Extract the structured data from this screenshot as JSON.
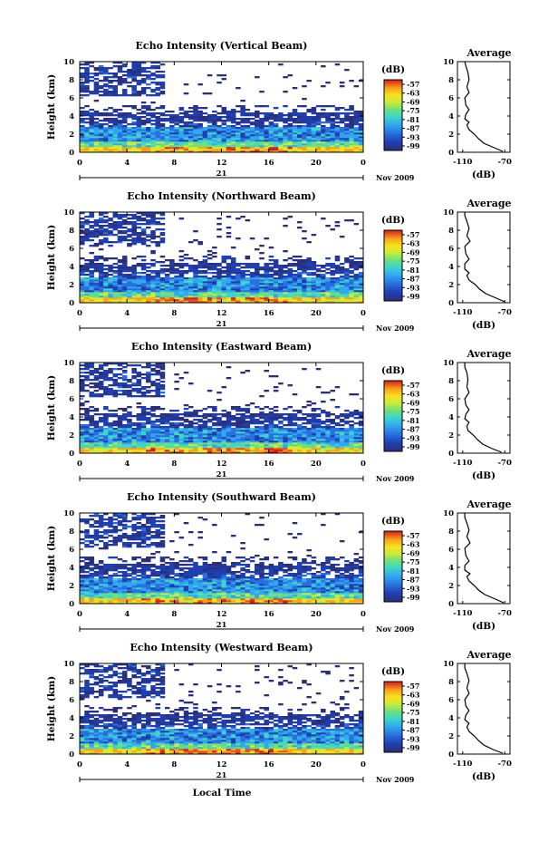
{
  "figure": {
    "xlabel_bottom": "Local Time",
    "colors": {
      "colormap": [
        "#2b2f7a",
        "#1f3fb0",
        "#2a6fe0",
        "#2fa8f0",
        "#3fd6c8",
        "#6fe07a",
        "#c8ec3a",
        "#f7e21d",
        "#f8a31a",
        "#ee4a1a",
        "#d81b1b"
      ]
    }
  },
  "chart_data": [
    {
      "type": "heatmap",
      "title": "Echo Intensity (Vertical Beam)",
      "ylabel": "Height (km)",
      "x_ticks": [
        "0",
        "4",
        "8",
        "12",
        "16",
        "20",
        "0"
      ],
      "y_ticks": [
        "0",
        "2",
        "4",
        "6",
        "8",
        "10"
      ],
      "xlim": [
        0,
        24
      ],
      "ylim": [
        0,
        10
      ],
      "day_label": "21",
      "month_label": "Nov 2009",
      "colorbar": {
        "unit": "(dB)",
        "ticks": [
          "-57",
          "-63",
          "-69",
          "-75",
          "-81",
          "-87",
          "-93",
          "-99"
        ]
      },
      "average": {
        "title": "Average",
        "xlabel": "(dB)",
        "x_ticks": [
          "-110",
          "-70"
        ],
        "xlim": [
          -115,
          -65
        ],
        "y_ticks": [
          "0",
          "2",
          "4",
          "6",
          "8",
          "10"
        ],
        "profile": [
          [
            -72,
            0.1
          ],
          [
            -80,
            0.5
          ],
          [
            -90,
            1.0
          ],
          [
            -95,
            1.5
          ],
          [
            -99,
            2.0
          ],
          [
            -104,
            2.5
          ],
          [
            -106,
            3.0
          ],
          [
            -104,
            3.3
          ],
          [
            -108,
            3.7
          ],
          [
            -107,
            4.2
          ],
          [
            -104,
            4.7
          ],
          [
            -107,
            5.2
          ],
          [
            -108,
            6.0
          ],
          [
            -104,
            6.6
          ],
          [
            -106,
            7.2
          ],
          [
            -104,
            8.0
          ],
          [
            -105,
            8.8
          ],
          [
            -107,
            9.5
          ],
          [
            -108,
            10.0
          ]
        ]
      }
    },
    {
      "type": "heatmap",
      "title": "Echo Intensity (Northward Beam)",
      "ylabel": "Height (km)",
      "x_ticks": [
        "0",
        "4",
        "8",
        "12",
        "16",
        "20",
        "0"
      ],
      "y_ticks": [
        "0",
        "2",
        "4",
        "6",
        "8",
        "10"
      ],
      "xlim": [
        0,
        24
      ],
      "ylim": [
        0,
        10
      ],
      "day_label": "21",
      "month_label": "Nov 2009",
      "colorbar": {
        "unit": "(dB)",
        "ticks": [
          "-57",
          "-63",
          "-69",
          "-75",
          "-81",
          "-87",
          "-93",
          "-99"
        ]
      },
      "average": {
        "title": "Average",
        "xlabel": "(dB)",
        "x_ticks": [
          "-110",
          "-70"
        ],
        "xlim": [
          -115,
          -65
        ],
        "y_ticks": [
          "0",
          "2",
          "4",
          "6",
          "8",
          "10"
        ],
        "profile": [
          [
            -70,
            0.1
          ],
          [
            -78,
            0.5
          ],
          [
            -88,
            1.0
          ],
          [
            -94,
            1.5
          ],
          [
            -98,
            2.0
          ],
          [
            -104,
            2.5
          ],
          [
            -106,
            3.0
          ],
          [
            -104,
            3.3
          ],
          [
            -108,
            3.7
          ],
          [
            -108,
            4.3
          ],
          [
            -104,
            4.8
          ],
          [
            -107,
            5.4
          ],
          [
            -108,
            6.2
          ],
          [
            -103,
            6.8
          ],
          [
            -106,
            7.4
          ],
          [
            -104,
            8.2
          ],
          [
            -106,
            9.0
          ],
          [
            -108,
            9.6
          ],
          [
            -108,
            10.0
          ]
        ]
      }
    },
    {
      "type": "heatmap",
      "title": "Echo Intensity (Eastward Beam)",
      "ylabel": "Height (km)",
      "x_ticks": [
        "0",
        "4",
        "8",
        "12",
        "16",
        "20",
        "0"
      ],
      "y_ticks": [
        "0",
        "2",
        "4",
        "6",
        "8",
        "10"
      ],
      "xlim": [
        0,
        24
      ],
      "ylim": [
        0,
        10
      ],
      "day_label": "21",
      "month_label": "Nov 2009",
      "colorbar": {
        "unit": "(dB)",
        "ticks": [
          "-57",
          "-63",
          "-69",
          "-75",
          "-81",
          "-87",
          "-93",
          "-99"
        ]
      },
      "average": {
        "title": "Average",
        "xlabel": "(dB)",
        "x_ticks": [
          "-110",
          "-70"
        ],
        "xlim": [
          -115,
          -65
        ],
        "y_ticks": [
          "0",
          "2",
          "4",
          "6",
          "8",
          "10"
        ],
        "profile": [
          [
            -73,
            0.1
          ],
          [
            -82,
            0.5
          ],
          [
            -91,
            1.0
          ],
          [
            -96,
            1.5
          ],
          [
            -100,
            2.0
          ],
          [
            -105,
            2.5
          ],
          [
            -106,
            3.0
          ],
          [
            -104,
            3.4
          ],
          [
            -108,
            3.8
          ],
          [
            -107,
            4.3
          ],
          [
            -104,
            4.8
          ],
          [
            -107,
            5.3
          ],
          [
            -108,
            6.0
          ],
          [
            -104,
            6.7
          ],
          [
            -106,
            7.3
          ],
          [
            -105,
            8.1
          ],
          [
            -106,
            8.9
          ],
          [
            -108,
            9.5
          ],
          [
            -108,
            10.0
          ]
        ]
      }
    },
    {
      "type": "heatmap",
      "title": "Echo Intensity (Southward Beam)",
      "ylabel": "Height (km)",
      "x_ticks": [
        "0",
        "4",
        "8",
        "12",
        "16",
        "20",
        "0"
      ],
      "y_ticks": [
        "0",
        "2",
        "4",
        "6",
        "8",
        "10"
      ],
      "xlim": [
        0,
        24
      ],
      "ylim": [
        0,
        10
      ],
      "day_label": "21",
      "month_label": "Nov 2009",
      "colorbar": {
        "unit": "(dB)",
        "ticks": [
          "-57",
          "-63",
          "-69",
          "-75",
          "-81",
          "-87",
          "-93",
          "-99"
        ]
      },
      "average": {
        "title": "Average",
        "xlabel": "(dB)",
        "x_ticks": [
          "-110",
          "-70"
        ],
        "xlim": [
          -115,
          -65
        ],
        "y_ticks": [
          "0",
          "2",
          "4",
          "6",
          "8",
          "10"
        ],
        "profile": [
          [
            -71,
            0.1
          ],
          [
            -79,
            0.5
          ],
          [
            -89,
            1.0
          ],
          [
            -95,
            1.5
          ],
          [
            -99,
            2.0
          ],
          [
            -104,
            2.5
          ],
          [
            -106,
            3.0
          ],
          [
            -103,
            3.3
          ],
          [
            -108,
            3.7
          ],
          [
            -108,
            4.2
          ],
          [
            -104,
            4.7
          ],
          [
            -107,
            5.3
          ],
          [
            -108,
            6.1
          ],
          [
            -103,
            6.7
          ],
          [
            -106,
            7.4
          ],
          [
            -104,
            8.1
          ],
          [
            -106,
            8.9
          ],
          [
            -108,
            9.5
          ],
          [
            -108,
            10.0
          ]
        ]
      }
    },
    {
      "type": "heatmap",
      "title": "Echo Intensity (Westward Beam)",
      "ylabel": "Height (km)",
      "x_ticks": [
        "0",
        "4",
        "8",
        "12",
        "16",
        "20",
        "0"
      ],
      "y_ticks": [
        "0",
        "2",
        "4",
        "6",
        "8",
        "10"
      ],
      "xlim": [
        0,
        24
      ],
      "ylim": [
        0,
        10
      ],
      "day_label": "21",
      "month_label": "Nov 2009",
      "colorbar": {
        "unit": "(dB)",
        "ticks": [
          "-57",
          "-63",
          "-69",
          "-75",
          "-81",
          "-87",
          "-93",
          "-99"
        ]
      },
      "average": {
        "title": "Average",
        "xlabel": "(dB)",
        "x_ticks": [
          "-110",
          "-70"
        ],
        "xlim": [
          -115,
          -65
        ],
        "y_ticks": [
          "0",
          "2",
          "4",
          "6",
          "8",
          "10"
        ],
        "profile": [
          [
            -72,
            0.1
          ],
          [
            -81,
            0.5
          ],
          [
            -90,
            1.0
          ],
          [
            -95,
            1.5
          ],
          [
            -99,
            2.0
          ],
          [
            -104,
            2.5
          ],
          [
            -106,
            3.0
          ],
          [
            -104,
            3.4
          ],
          [
            -108,
            3.8
          ],
          [
            -107,
            4.3
          ],
          [
            -104,
            4.8
          ],
          [
            -107,
            5.3
          ],
          [
            -108,
            6.0
          ],
          [
            -104,
            6.7
          ],
          [
            -106,
            7.3
          ],
          [
            -104,
            8.1
          ],
          [
            -106,
            8.9
          ],
          [
            -108,
            9.5
          ],
          [
            -108,
            10.0
          ]
        ]
      }
    }
  ]
}
